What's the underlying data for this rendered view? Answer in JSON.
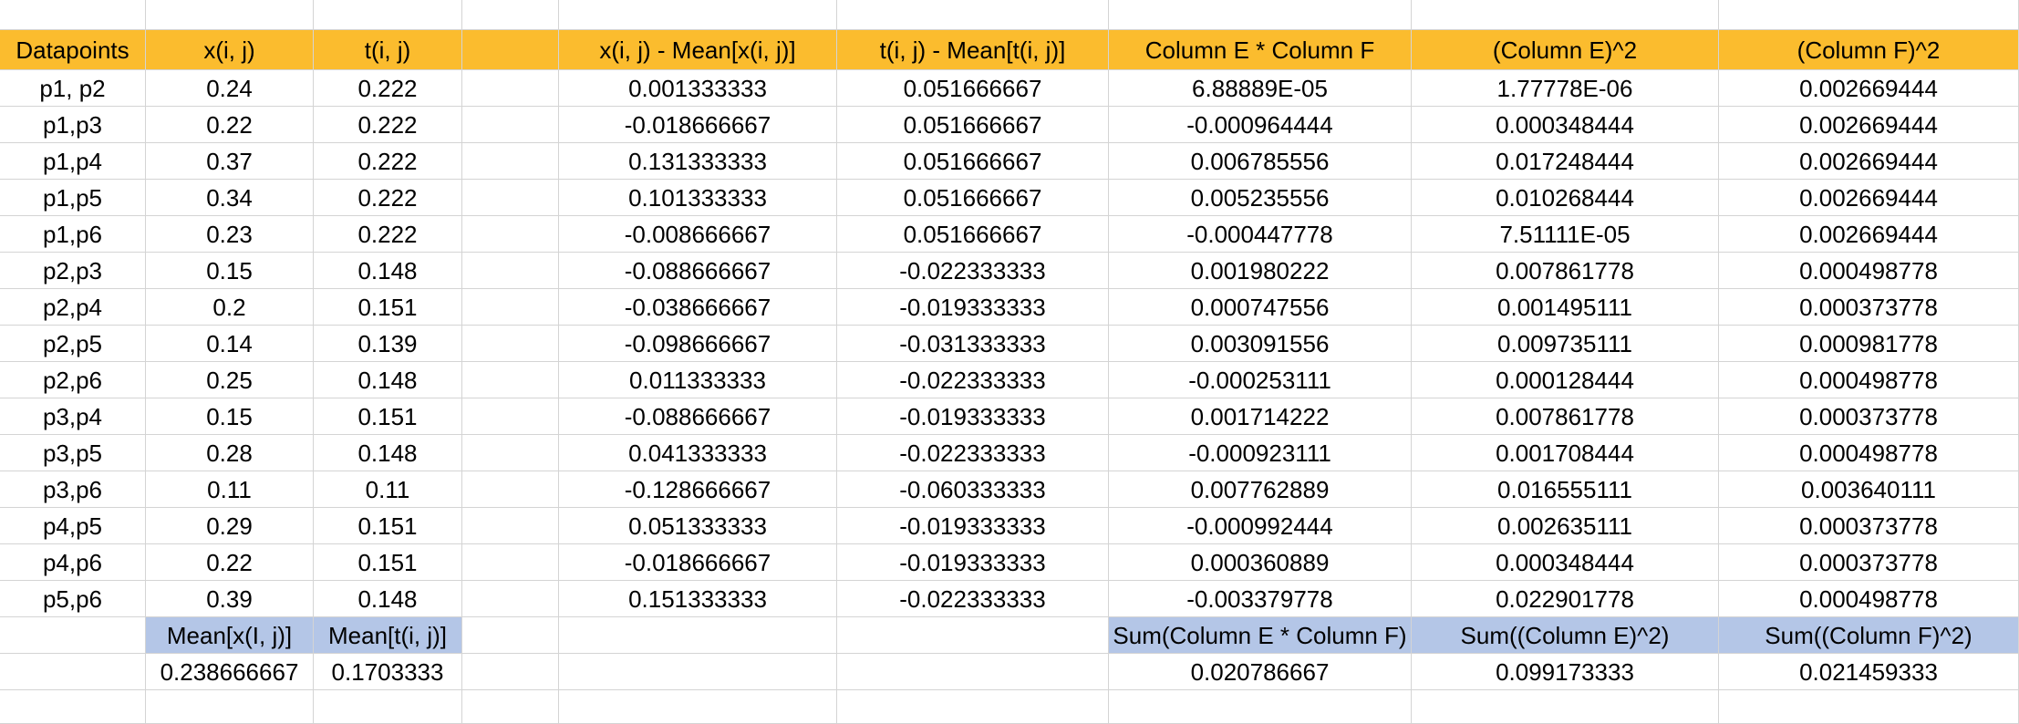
{
  "colors": {
    "header_fill": "#fbbc2e",
    "summary_fill": "#b4c6e7",
    "gridline": "#d4d4d4"
  },
  "header": [
    "Datapoints",
    "x(i, j)",
    "t(i, j)",
    "",
    "x(i, j) - Mean[x(i, j)]",
    "t(i, j) - Mean[t(i, j)]",
    "Column E * Column F",
    "(Column E)^2",
    "(Column F)^2"
  ],
  "rows": [
    [
      "p1, p2",
      "0.24",
      "0.222",
      "",
      "0.001333333",
      "0.051666667",
      "6.88889E-05",
      "1.77778E-06",
      "0.002669444"
    ],
    [
      "p1,p3",
      "0.22",
      "0.222",
      "",
      "-0.018666667",
      "0.051666667",
      "-0.000964444",
      "0.000348444",
      "0.002669444"
    ],
    [
      "p1,p4",
      "0.37",
      "0.222",
      "",
      "0.131333333",
      "0.051666667",
      "0.006785556",
      "0.017248444",
      "0.002669444"
    ],
    [
      "p1,p5",
      "0.34",
      "0.222",
      "",
      "0.101333333",
      "0.051666667",
      "0.005235556",
      "0.010268444",
      "0.002669444"
    ],
    [
      "p1,p6",
      "0.23",
      "0.222",
      "",
      "-0.008666667",
      "0.051666667",
      "-0.000447778",
      "7.51111E-05",
      "0.002669444"
    ],
    [
      "p2,p3",
      "0.15",
      "0.148",
      "",
      "-0.088666667",
      "-0.022333333",
      "0.001980222",
      "0.007861778",
      "0.000498778"
    ],
    [
      "p2,p4",
      "0.2",
      "0.151",
      "",
      "-0.038666667",
      "-0.019333333",
      "0.000747556",
      "0.001495111",
      "0.000373778"
    ],
    [
      "p2,p5",
      "0.14",
      "0.139",
      "",
      "-0.098666667",
      "-0.031333333",
      "0.003091556",
      "0.009735111",
      "0.000981778"
    ],
    [
      "p2,p6",
      "0.25",
      "0.148",
      "",
      "0.011333333",
      "-0.022333333",
      "-0.000253111",
      "0.000128444",
      "0.000498778"
    ],
    [
      "p3,p4",
      "0.15",
      "0.151",
      "",
      "-0.088666667",
      "-0.019333333",
      "0.001714222",
      "0.007861778",
      "0.000373778"
    ],
    [
      "p3,p5",
      "0.28",
      "0.148",
      "",
      "0.041333333",
      "-0.022333333",
      "-0.000923111",
      "0.001708444",
      "0.000498778"
    ],
    [
      "p3,p6",
      "0.11",
      "0.11",
      "",
      "-0.128666667",
      "-0.060333333",
      "0.007762889",
      "0.016555111",
      "0.003640111"
    ],
    [
      "p4,p5",
      "0.29",
      "0.151",
      "",
      "0.051333333",
      "-0.019333333",
      "-0.000992444",
      "0.002635111",
      "0.000373778"
    ],
    [
      "p4,p6",
      "0.22",
      "0.151",
      "",
      "-0.018666667",
      "-0.019333333",
      "0.000360889",
      "0.000348444",
      "0.000373778"
    ],
    [
      "p5,p6",
      "0.39",
      "0.148",
      "",
      "0.151333333",
      "-0.022333333",
      "-0.003379778",
      "0.022901778",
      "0.000498778"
    ]
  ],
  "summary_labels": [
    "",
    "Mean[x(I, j)]",
    "Mean[t(i, j)]",
    "",
    "",
    "",
    "Sum(Column E * Column F)",
    "Sum((Column E)^2)",
    "Sum((Column F)^2)"
  ],
  "summary_values": [
    "",
    "0.238666667",
    "0.1703333",
    "",
    "",
    "",
    "0.020786667",
    "0.099173333",
    "0.021459333"
  ]
}
